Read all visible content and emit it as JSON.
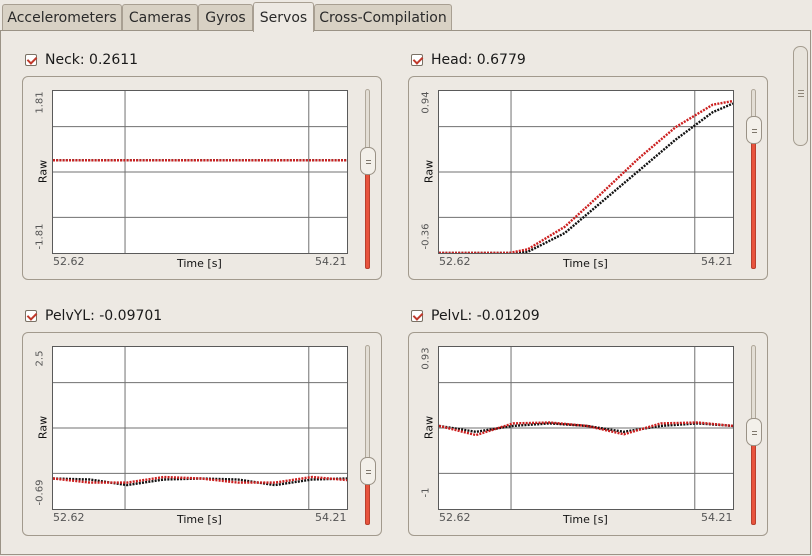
{
  "tabs": [
    {
      "label": "Accelerometers",
      "active": false
    },
    {
      "label": "Cameras",
      "active": false
    },
    {
      "label": "Gyros",
      "active": false
    },
    {
      "label": "Servos",
      "active": true
    },
    {
      "label": "Cross-Compilation",
      "active": false
    }
  ],
  "colors": {
    "series_red": "#cc1f1f",
    "series_black": "#111111",
    "slider_fill": "#e8543e"
  },
  "panels": [
    {
      "title": "Neck: 0.2611",
      "checked": true,
      "ymax_label": "1.81",
      "ymin_label": "-1.81",
      "ylabel": "Raw",
      "xmin_label": "52.62",
      "xmax_label": "54.21",
      "xlabel": "Time [s]",
      "slider_level": 0.62
    },
    {
      "title": "Head: 0.6779",
      "checked": true,
      "ymax_label": "0.94",
      "ymin_label": "-0.36",
      "ylabel": "Raw",
      "xmin_label": "52.62",
      "xmax_label": "54.21",
      "xlabel": "Time [s]",
      "slider_level": 0.82
    },
    {
      "title": "PelvYL: -0.09701",
      "checked": true,
      "ymax_label": "2.5",
      "ymin_label": "-0.69",
      "ylabel": "Raw",
      "xmin_label": "52.62",
      "xmax_label": "54.21",
      "xlabel": "Time [s]",
      "slider_level": 0.26
    },
    {
      "title": "PelvL: -0.01209",
      "checked": true,
      "ymax_label": "0.93",
      "ymin_label": "-1",
      "ylabel": "Raw",
      "xmin_label": "52.62",
      "xmax_label": "54.21",
      "xlabel": "Time [s]",
      "slider_level": 0.52
    }
  ],
  "chart_data": [
    {
      "type": "line",
      "x_range": [
        52.62,
        54.21
      ],
      "ylim": [
        -1.81,
        1.81
      ],
      "xlabel": "Time [s]",
      "ylabel": "Raw",
      "series": [
        {
          "color": "#111111",
          "x": [
            52.62,
            54.21
          ],
          "y": [
            0.2611,
            0.2611
          ]
        },
        {
          "color": "#cc1f1f",
          "x": [
            52.62,
            54.21
          ],
          "y": [
            0.2611,
            0.2611
          ]
        }
      ]
    },
    {
      "type": "line",
      "x_range": [
        52.62,
        54.21
      ],
      "ylim": [
        -0.36,
        0.94
      ],
      "xlabel": "Time [s]",
      "ylabel": "Raw",
      "series": [
        {
          "color": "#111111",
          "x": [
            52.62,
            53.02,
            53.1,
            53.3,
            53.5,
            53.7,
            53.9,
            54.1,
            54.21
          ],
          "y": [
            -0.36,
            -0.36,
            -0.35,
            -0.2,
            0.05,
            0.3,
            0.55,
            0.77,
            0.84
          ]
        },
        {
          "color": "#cc1f1f",
          "x": [
            52.62,
            53.0,
            53.1,
            53.3,
            53.5,
            53.7,
            53.9,
            54.1,
            54.21
          ],
          "y": [
            -0.36,
            -0.36,
            -0.33,
            -0.15,
            0.12,
            0.4,
            0.65,
            0.83,
            0.86
          ]
        }
      ]
    },
    {
      "type": "line",
      "x_range": [
        52.62,
        54.21
      ],
      "ylim": [
        -0.69,
        2.5
      ],
      "xlabel": "Time [s]",
      "ylabel": "Raw",
      "series": [
        {
          "color": "#111111",
          "x": [
            52.62,
            52.82,
            53.02,
            53.22,
            53.42,
            53.62,
            53.82,
            54.02,
            54.21
          ],
          "y": [
            -0.09,
            -0.11,
            -0.22,
            -0.11,
            -0.09,
            -0.11,
            -0.22,
            -0.11,
            -0.09
          ]
        },
        {
          "color": "#cc1f1f",
          "x": [
            52.62,
            52.82,
            53.02,
            53.22,
            53.42,
            53.62,
            53.82,
            54.02,
            54.21
          ],
          "y": [
            -0.09,
            -0.17,
            -0.17,
            -0.06,
            -0.09,
            -0.17,
            -0.17,
            -0.06,
            -0.12
          ]
        }
      ]
    },
    {
      "type": "line",
      "x_range": [
        52.62,
        54.21
      ],
      "ylim": [
        -1,
        0.93
      ],
      "xlabel": "Time [s]",
      "ylabel": "Raw",
      "series": [
        {
          "color": "#111111",
          "x": [
            52.62,
            52.82,
            53.02,
            53.22,
            53.42,
            53.62,
            53.82,
            54.02,
            54.21
          ],
          "y": [
            -0.01,
            -0.08,
            -0.01,
            0.02,
            -0.01,
            -0.08,
            -0.01,
            0.02,
            -0.01
          ]
        },
        {
          "color": "#cc1f1f",
          "x": [
            52.62,
            52.82,
            53.02,
            53.22,
            53.42,
            53.62,
            53.82,
            54.02,
            54.21
          ],
          "y": [
            -0.01,
            -0.12,
            0.02,
            0.03,
            -0.01,
            -0.11,
            0.02,
            0.03,
            -0.01
          ]
        }
      ]
    }
  ]
}
